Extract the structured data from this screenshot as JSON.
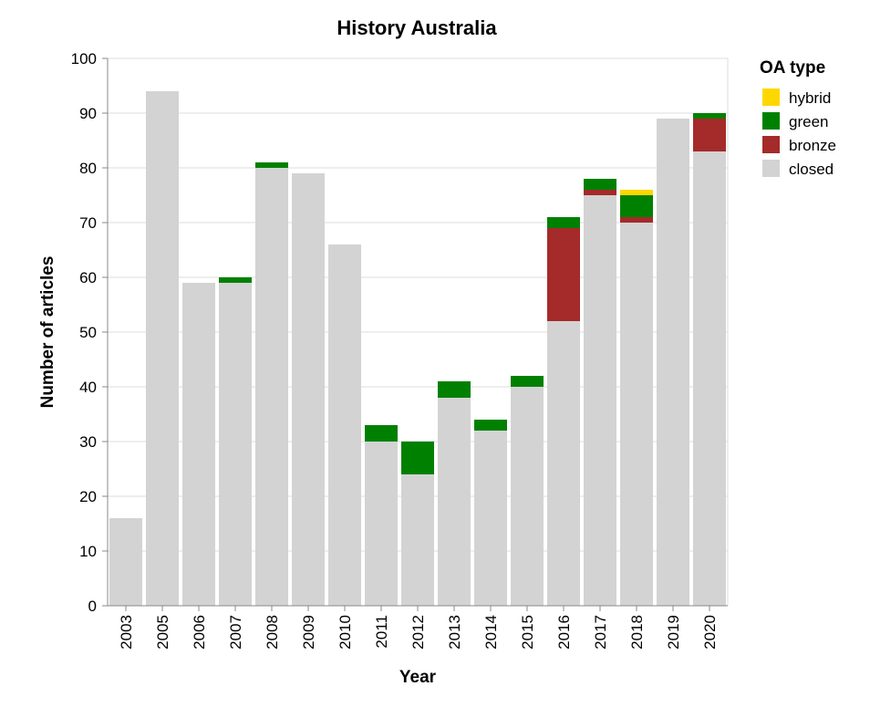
{
  "chart_data": {
    "type": "bar",
    "stacked": true,
    "title": "History Australia",
    "xlabel": "Year",
    "ylabel": "Number of articles",
    "ylim": [
      0,
      100
    ],
    "yticks": [
      0,
      10,
      20,
      30,
      40,
      50,
      60,
      70,
      80,
      90,
      100
    ],
    "grid": true,
    "legend_title": "OA type",
    "legend_position": "top-right",
    "categories": [
      "2003",
      "2005",
      "2006",
      "2007",
      "2008",
      "2009",
      "2010",
      "2011",
      "2012",
      "2013",
      "2014",
      "2015",
      "2016",
      "2017",
      "2018",
      "2019",
      "2020"
    ],
    "series": [
      {
        "name": "closed",
        "color": "#d3d3d3",
        "values": [
          16,
          94,
          59,
          59,
          80,
          79,
          66,
          30,
          24,
          38,
          32,
          40,
          52,
          75,
          70,
          89,
          83
        ]
      },
      {
        "name": "bronze",
        "color": "#a52a2a",
        "values": [
          0,
          0,
          0,
          0,
          0,
          0,
          0,
          0,
          0,
          0,
          0,
          0,
          17,
          1,
          1,
          0,
          6
        ]
      },
      {
        "name": "green",
        "color": "#008000",
        "values": [
          0,
          0,
          0,
          1,
          1,
          0,
          0,
          3,
          6,
          3,
          2,
          2,
          2,
          2,
          4,
          0,
          1
        ]
      },
      {
        "name": "hybrid",
        "color": "#ffd700",
        "values": [
          0,
          0,
          0,
          0,
          0,
          0,
          0,
          0,
          0,
          0,
          0,
          0,
          0,
          0,
          1,
          0,
          0
        ]
      }
    ],
    "legend_order": [
      "hybrid",
      "green",
      "bronze",
      "closed"
    ]
  }
}
